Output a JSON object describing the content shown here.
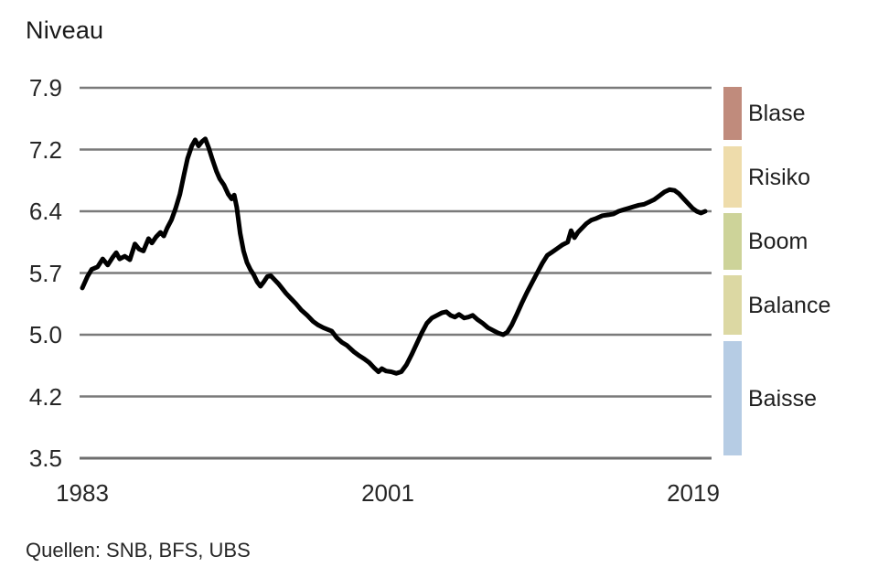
{
  "title": "Niveau",
  "source": "Quellen: SNB, BFS, UBS",
  "y_axis": {
    "tick_labels": [
      "7.9",
      "7.2",
      "6.4",
      "5.7",
      "5.0",
      "4.2",
      "3.5"
    ]
  },
  "x_axis": {
    "tick_labels": [
      "1983",
      "2001",
      "2019"
    ]
  },
  "legend": {
    "position": "right",
    "items": [
      {
        "label": "Blase",
        "color": "#c08b7c"
      },
      {
        "label": "Risiko",
        "color": "#eedcab"
      },
      {
        "label": "Boom",
        "color": "#cdd399"
      },
      {
        "label": "Balance",
        "color": "#dcd8a3"
      },
      {
        "label": "Baisse",
        "color": "#b6cce4"
      }
    ]
  },
  "colors": {
    "line": "#000000",
    "grid": "#7a7a7a",
    "axis_bottom": "#6e6e6e"
  },
  "chart_data": {
    "type": "line",
    "title": "Niveau",
    "xlabel": "",
    "ylabel": "Niveau",
    "grid": "horizontal",
    "legend_position": "right",
    "ylim": [
      3.5,
      7.9
    ],
    "xlim": [
      1983,
      2019.8
    ],
    "y_tick_values": [
      7.9,
      7.2,
      6.4,
      5.7,
      5.0,
      4.2,
      3.5
    ],
    "x_tick_values": [
      1983,
      2001,
      2019
    ],
    "zones": [
      {
        "label": "Blase",
        "from": 7.2,
        "to": 7.9
      },
      {
        "label": "Risiko",
        "from": 6.4,
        "to": 7.2
      },
      {
        "label": "Boom",
        "from": 5.7,
        "to": 6.4
      },
      {
        "label": "Balance",
        "from": 5.0,
        "to": 5.7
      },
      {
        "label": "Baisse",
        "from": 3.5,
        "to": 5.0
      }
    ],
    "series": [
      {
        "name": "Niveau",
        "points": [
          [
            1983.0,
            5.53
          ],
          [
            1983.3,
            5.66
          ],
          [
            1983.55,
            5.74
          ],
          [
            1983.9,
            5.77
          ],
          [
            1984.2,
            5.86
          ],
          [
            1984.5,
            5.79
          ],
          [
            1984.8,
            5.88
          ],
          [
            1985.0,
            5.93
          ],
          [
            1985.2,
            5.86
          ],
          [
            1985.5,
            5.89
          ],
          [
            1985.8,
            5.85
          ],
          [
            1986.1,
            6.03
          ],
          [
            1986.35,
            5.97
          ],
          [
            1986.6,
            5.95
          ],
          [
            1986.9,
            6.09
          ],
          [
            1987.1,
            6.04
          ],
          [
            1987.35,
            6.11
          ],
          [
            1987.6,
            6.16
          ],
          [
            1987.8,
            6.12
          ],
          [
            1988.0,
            6.21
          ],
          [
            1988.25,
            6.3
          ],
          [
            1988.5,
            6.44
          ],
          [
            1988.75,
            6.62
          ],
          [
            1989.0,
            6.88
          ],
          [
            1989.2,
            7.08
          ],
          [
            1989.45,
            7.24
          ],
          [
            1989.65,
            7.31
          ],
          [
            1989.85,
            7.24
          ],
          [
            1990.05,
            7.29
          ],
          [
            1990.25,
            7.32
          ],
          [
            1990.45,
            7.22
          ],
          [
            1990.65,
            7.08
          ],
          [
            1990.9,
            6.92
          ],
          [
            1991.1,
            6.82
          ],
          [
            1991.35,
            6.74
          ],
          [
            1991.6,
            6.62
          ],
          [
            1991.8,
            6.56
          ],
          [
            1991.95,
            6.61
          ],
          [
            1992.1,
            6.45
          ],
          [
            1992.3,
            6.15
          ],
          [
            1992.5,
            5.95
          ],
          [
            1992.7,
            5.82
          ],
          [
            1992.9,
            5.74
          ],
          [
            1993.1,
            5.68
          ],
          [
            1993.3,
            5.6
          ],
          [
            1993.5,
            5.55
          ],
          [
            1993.7,
            5.6
          ],
          [
            1993.9,
            5.66
          ],
          [
            1994.1,
            5.67
          ],
          [
            1994.3,
            5.63
          ],
          [
            1994.55,
            5.58
          ],
          [
            1995.0,
            5.47
          ],
          [
            1995.3,
            5.41
          ],
          [
            1995.6,
            5.35
          ],
          [
            1995.9,
            5.28
          ],
          [
            1996.25,
            5.22
          ],
          [
            1996.6,
            5.15
          ],
          [
            1996.9,
            5.11
          ],
          [
            1997.2,
            5.08
          ],
          [
            1997.45,
            5.06
          ],
          [
            1997.7,
            5.04
          ],
          [
            1998.0,
            4.96
          ],
          [
            1998.3,
            4.9
          ],
          [
            1998.6,
            4.86
          ],
          [
            1999.0,
            4.78
          ],
          [
            1999.3,
            4.73
          ],
          [
            1999.6,
            4.69
          ],
          [
            1999.9,
            4.64
          ],
          [
            2000.2,
            4.57
          ],
          [
            2000.45,
            4.52
          ],
          [
            2000.65,
            4.56
          ],
          [
            2000.9,
            4.53
          ],
          [
            2001.2,
            4.52
          ],
          [
            2001.5,
            4.5
          ],
          [
            2001.8,
            4.52
          ],
          [
            2002.1,
            4.61
          ],
          [
            2002.4,
            4.74
          ],
          [
            2002.7,
            4.88
          ],
          [
            2003.0,
            5.02
          ],
          [
            2003.3,
            5.13
          ],
          [
            2003.6,
            5.19
          ],
          [
            2003.9,
            5.22
          ],
          [
            2004.2,
            5.25
          ],
          [
            2004.45,
            5.26
          ],
          [
            2004.7,
            5.22
          ],
          [
            2004.95,
            5.2
          ],
          [
            2005.2,
            5.23
          ],
          [
            2005.5,
            5.19
          ],
          [
            2005.75,
            5.2
          ],
          [
            2006.0,
            5.22
          ],
          [
            2006.3,
            5.17
          ],
          [
            2006.6,
            5.13
          ],
          [
            2006.9,
            5.08
          ],
          [
            2007.2,
            5.05
          ],
          [
            2007.5,
            5.02
          ],
          [
            2007.8,
            5.0
          ],
          [
            2008.05,
            5.03
          ],
          [
            2008.3,
            5.11
          ],
          [
            2008.6,
            5.23
          ],
          [
            2008.9,
            5.36
          ],
          [
            2009.2,
            5.48
          ],
          [
            2009.5,
            5.59
          ],
          [
            2009.8,
            5.7
          ],
          [
            2010.1,
            5.81
          ],
          [
            2010.4,
            5.9
          ],
          [
            2010.7,
            5.94
          ],
          [
            2011.0,
            5.98
          ],
          [
            2011.3,
            6.02
          ],
          [
            2011.6,
            6.05
          ],
          [
            2011.8,
            6.18
          ],
          [
            2012.0,
            6.1
          ],
          [
            2012.2,
            6.16
          ],
          [
            2012.45,
            6.21
          ],
          [
            2012.7,
            6.26
          ],
          [
            2013.0,
            6.3
          ],
          [
            2013.3,
            6.32
          ],
          [
            2013.65,
            6.35
          ],
          [
            2014.0,
            6.36
          ],
          [
            2014.3,
            6.37
          ],
          [
            2014.6,
            6.4
          ],
          [
            2014.9,
            6.42
          ],
          [
            2015.2,
            6.44
          ],
          [
            2015.5,
            6.46
          ],
          [
            2015.8,
            6.48
          ],
          [
            2016.1,
            6.49
          ],
          [
            2016.4,
            6.52
          ],
          [
            2016.7,
            6.55
          ],
          [
            2017.0,
            6.6
          ],
          [
            2017.3,
            6.65
          ],
          [
            2017.6,
            6.68
          ],
          [
            2017.9,
            6.67
          ],
          [
            2018.15,
            6.63
          ],
          [
            2018.4,
            6.57
          ],
          [
            2018.7,
            6.5
          ],
          [
            2018.95,
            6.44
          ],
          [
            2019.2,
            6.4
          ],
          [
            2019.45,
            6.38
          ],
          [
            2019.7,
            6.4
          ]
        ]
      }
    ]
  }
}
